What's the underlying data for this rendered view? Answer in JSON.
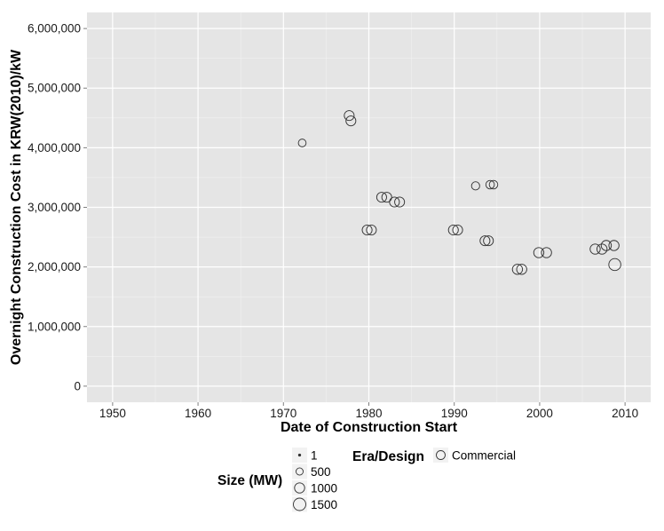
{
  "chart_data": {
    "type": "scatter",
    "title": "",
    "xlabel": "Date of Construction Start",
    "ylabel": "Overnight Construction Cost in KRW(2010)/kW",
    "xlim": [
      1947,
      2013
    ],
    "ylim": [
      -270000,
      6270000
    ],
    "x_ticks": [
      1950,
      1960,
      1970,
      1980,
      1990,
      2000,
      2010
    ],
    "x_tick_labels": [
      "1950",
      "1960",
      "1970",
      "1980",
      "1990",
      "2000",
      "2010"
    ],
    "y_ticks": [
      0,
      1000000,
      2000000,
      3000000,
      4000000,
      5000000,
      6000000
    ],
    "y_tick_labels": [
      "0",
      "1,000,000",
      "2,000,000",
      "3,000,000",
      "4,000,000",
      "5,000,000",
      "6,000,000"
    ],
    "grid": true,
    "background": "#e5e5e5",
    "grid_color": "#ffffff",
    "point_color": "#333333",
    "legend_position": "bottom",
    "size_legend": {
      "title": "Size (MW)",
      "entries": [
        {
          "label": "1",
          "value": 1
        },
        {
          "label": "500",
          "value": 500
        },
        {
          "label": "1000",
          "value": 1000
        },
        {
          "label": "1500",
          "value": 1500
        }
      ]
    },
    "shape_legend": {
      "title": "Era/Design",
      "entries": [
        {
          "label": "Commercial"
        }
      ]
    },
    "series": [
      {
        "name": "Commercial",
        "points": [
          {
            "x": 1972.2,
            "y": 4080000,
            "size": 587
          },
          {
            "x": 1977.7,
            "y": 4540000,
            "size": 950
          },
          {
            "x": 1977.9,
            "y": 4450000,
            "size": 950
          },
          {
            "x": 1979.8,
            "y": 2620000,
            "size": 950
          },
          {
            "x": 1980.3,
            "y": 2620000,
            "size": 950
          },
          {
            "x": 1981.5,
            "y": 3170000,
            "size": 950
          },
          {
            "x": 1982.1,
            "y": 3170000,
            "size": 950
          },
          {
            "x": 1983.0,
            "y": 3090000,
            "size": 950
          },
          {
            "x": 1983.6,
            "y": 3090000,
            "size": 950
          },
          {
            "x": 1989.9,
            "y": 2620000,
            "size": 950
          },
          {
            "x": 1990.4,
            "y": 2620000,
            "size": 950
          },
          {
            "x": 1992.5,
            "y": 3360000,
            "size": 650
          },
          {
            "x": 1993.6,
            "y": 2440000,
            "size": 950
          },
          {
            "x": 1994.0,
            "y": 2440000,
            "size": 950
          },
          {
            "x": 1994.2,
            "y": 3380000,
            "size": 700
          },
          {
            "x": 1994.6,
            "y": 3380000,
            "size": 700
          },
          {
            "x": 1997.4,
            "y": 1960000,
            "size": 1000
          },
          {
            "x": 1997.9,
            "y": 1960000,
            "size": 1000
          },
          {
            "x": 1999.9,
            "y": 2240000,
            "size": 1000
          },
          {
            "x": 2000.8,
            "y": 2240000,
            "size": 1000
          },
          {
            "x": 2006.5,
            "y": 2300000,
            "size": 1000
          },
          {
            "x": 2007.3,
            "y": 2300000,
            "size": 1000
          },
          {
            "x": 2007.8,
            "y": 2360000,
            "size": 1000
          },
          {
            "x": 2008.7,
            "y": 2360000,
            "size": 1000
          },
          {
            "x": 2008.8,
            "y": 2040000,
            "size": 1400
          }
        ]
      }
    ]
  }
}
